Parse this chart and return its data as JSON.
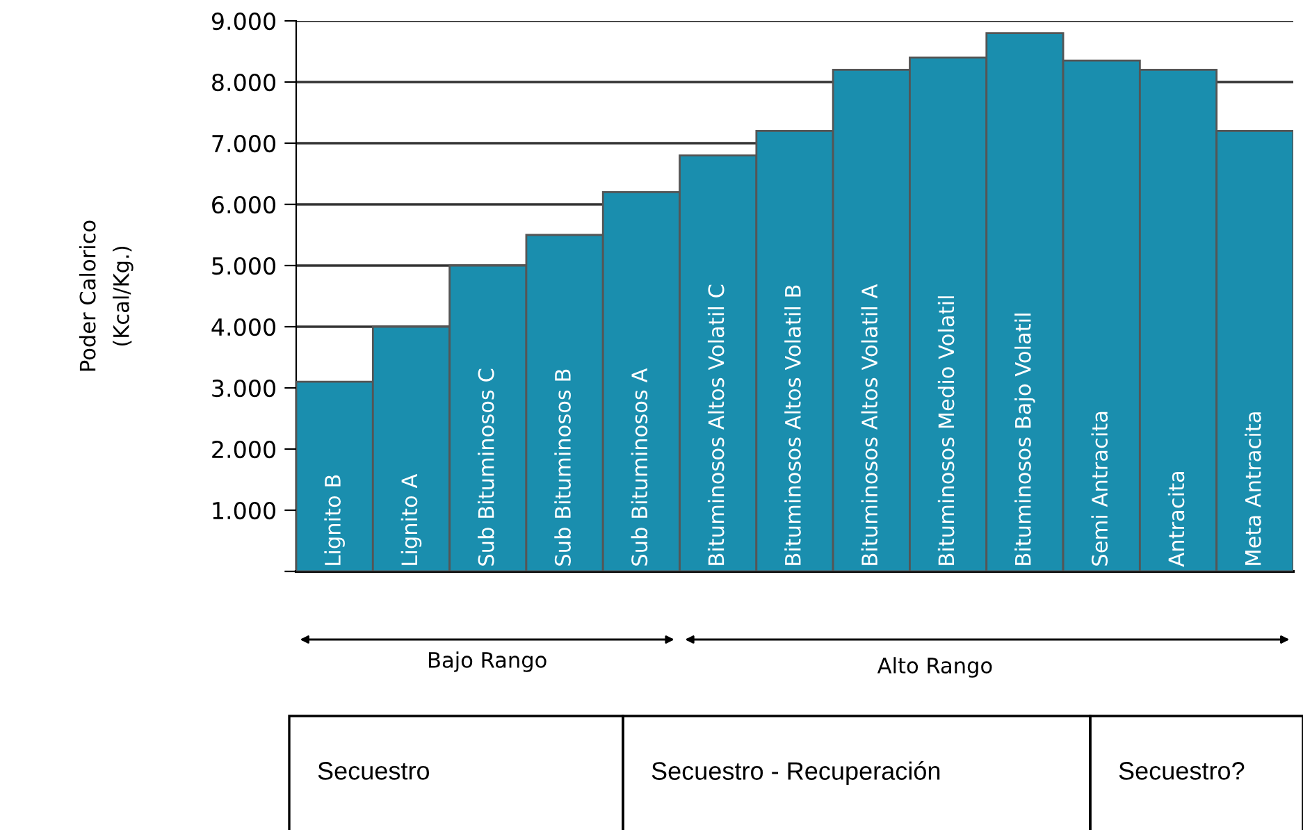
{
  "chart_data": {
    "type": "bar",
    "ylabel": "Poder Calorico\n(Kcal/Kg.)",
    "categories": [
      "Lignito B",
      "Lignito A",
      "Sub Bituminosos C",
      "Sub Bituminosos B",
      "Sub Bituminosos A",
      "Bituminosos Altos Volatil C",
      "Bituminosos Altos Volatil B",
      "Bituminosos Altos Volatil A",
      "Bituminosos Medio Volatil",
      "Bituminosos Bajo Volatil",
      "Semi Antracita",
      "Antracita",
      "Meta Antracita"
    ],
    "values": [
      3100,
      4000,
      5000,
      5500,
      6200,
      6800,
      7200,
      8200,
      8400,
      8800,
      8350,
      8200,
      7200
    ],
    "color": "#1a8eae",
    "ylim": [
      0,
      9000
    ],
    "yticks": [
      {
        "value": 0,
        "label": null
      },
      {
        "value": 1000,
        "label": "1.000"
      },
      {
        "value": 2000,
        "label": "2.000"
      },
      {
        "value": 3000,
        "label": "3.000"
      },
      {
        "value": 4000,
        "label": "4.000"
      },
      {
        "value": 5000,
        "label": "5.000"
      },
      {
        "value": 6000,
        "label": "6.000"
      },
      {
        "value": 7000,
        "label": "7.000"
      },
      {
        "value": 8000,
        "label": "8.000"
      },
      {
        "value": 9000,
        "label": "9.000"
      }
    ],
    "grid": "y",
    "annotations": [
      "Bajo Rango",
      "Alto Rango",
      "Secuestro",
      "Secuestro - Recuperación",
      "Secuestro?"
    ]
  }
}
